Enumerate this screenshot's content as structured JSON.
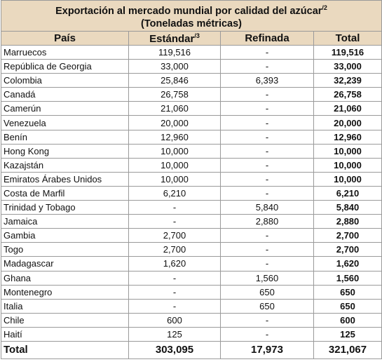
{
  "title": {
    "text": "Exportación al mercado mundial por calidad del azúcar",
    "note": "/2",
    "subtitle": "(Toneladas métricas)"
  },
  "table": {
    "header": [
      "País",
      "Estándar",
      "Refinada",
      "Total"
    ],
    "header_note": "/3",
    "rows": [
      [
        "Marruecos",
        "119,516",
        "-",
        "119,516"
      ],
      [
        "República de Georgia",
        "33,000",
        "-",
        "33,000"
      ],
      [
        "Colombia",
        "25,846",
        "6,393",
        "32,239"
      ],
      [
        "Canadá",
        "26,758",
        "-",
        "26,758"
      ],
      [
        "Camerún",
        "21,060",
        "-",
        "21,060"
      ],
      [
        "Venezuela",
        "20,000",
        "-",
        "20,000"
      ],
      [
        "Benín",
        "12,960",
        "-",
        "12,960"
      ],
      [
        "Hong Kong",
        "10,000",
        "-",
        "10,000"
      ],
      [
        "Kazajstán",
        "10,000",
        "-",
        "10,000"
      ],
      [
        "Emiratos Árabes Unidos",
        "10,000",
        "-",
        "10,000"
      ],
      [
        "Costa de Marfil",
        "6,210",
        "-",
        "6,210"
      ],
      [
        "Trinidad y Tobago",
        "-",
        "5,840",
        "5,840"
      ],
      [
        "Jamaica",
        "-",
        "2,880",
        "2,880"
      ],
      [
        "Gambia",
        "2,700",
        "-",
        "2,700"
      ],
      [
        "Togo",
        "2,700",
        "-",
        "2,700"
      ],
      [
        "Madagascar",
        "1,620",
        "-",
        "1,620"
      ],
      [
        "Ghana",
        "-",
        "1,560",
        "1,560"
      ],
      [
        "Montenegro",
        "-",
        "650",
        "650"
      ],
      [
        "Italia",
        "-",
        "650",
        "650"
      ],
      [
        "Chile",
        "600",
        "-",
        "600"
      ],
      [
        "Haití",
        "125",
        "-",
        "125"
      ]
    ],
    "total": [
      "Total",
      "303,095",
      "17,973",
      "321,067"
    ]
  }
}
